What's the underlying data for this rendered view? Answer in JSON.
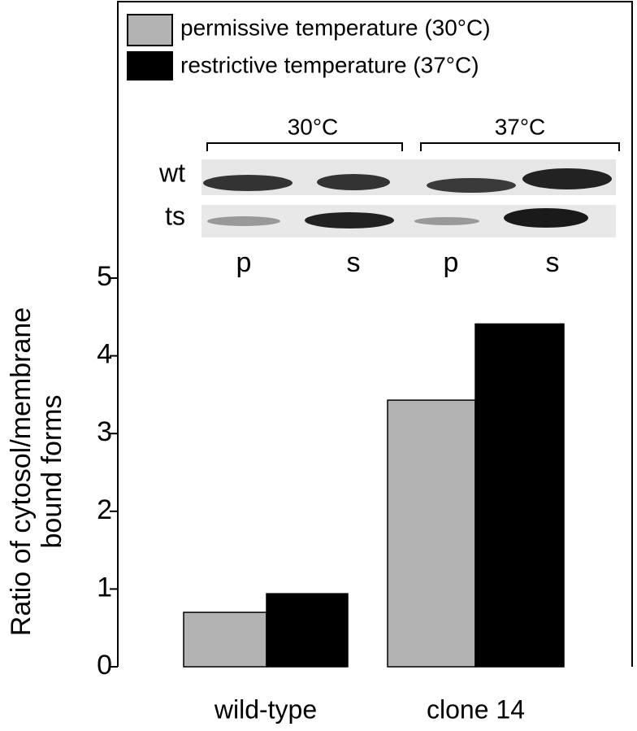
{
  "chart_data": {
    "type": "bar",
    "ylabel": [
      "Ratio of cytosol/membrane",
      "bound forms"
    ],
    "categories": [
      "wild-type",
      "clone 14"
    ],
    "series": [
      {
        "name": "permissive temperature (30°C)",
        "color": "#b3b3b3",
        "values": [
          0.7,
          3.43
        ]
      },
      {
        "name": "restrictive temperature (37°C)",
        "color": "#000000",
        "values": [
          0.94,
          4.41
        ]
      }
    ],
    "ylim": [
      0,
      5
    ],
    "yticks": [
      0,
      1,
      2,
      3,
      4,
      5
    ],
    "inset": {
      "temperatures": [
        "30°C",
        "37°C"
      ],
      "rows": [
        "wt",
        "ts"
      ],
      "lanes": [
        "p",
        "s",
        "p",
        "s"
      ]
    }
  }
}
